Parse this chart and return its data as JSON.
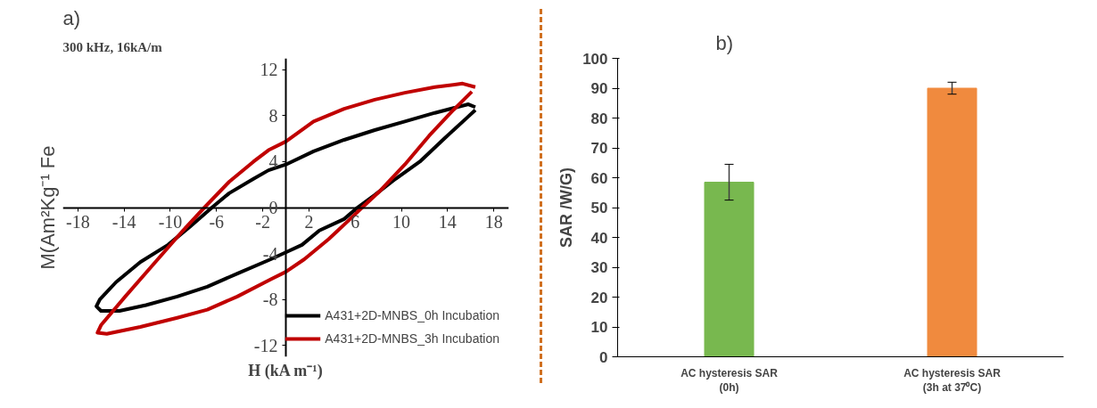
{
  "chart_data": [
    {
      "type": "line",
      "title": "a)",
      "xlabel": "H (kA m⁻¹)",
      "ylabel": "M(Am²Kg⁻¹ Fe",
      "annotations": [
        "300 kHz, 16kA/m"
      ],
      "xlim": [
        -19.3,
        19.3
      ],
      "ylim": [
        -13,
        13
      ],
      "xticks": [
        -18,
        -14,
        -10,
        -6,
        -2,
        2,
        6,
        10,
        14,
        18
      ],
      "yticks": [
        -12,
        -8,
        -4,
        0,
        4,
        8,
        12
      ],
      "grid": false,
      "legend": "bottom right",
      "line_style": "solid",
      "marker": "none",
      "series": [
        {
          "name": "A431+2D-MNBS_0h Incubation",
          "color": "#000000",
          "x": [
            16.4,
            15.8,
            12.9,
            10.3,
            7.7,
            5.05,
            2.4,
            0,
            -1.5,
            -2.8,
            -4.9,
            -6.4,
            -8.1,
            -10.2,
            -12.6,
            -14.7,
            -16.1,
            -16.4,
            -16,
            -14.4,
            -12.1,
            -9.4,
            -6.8,
            -4.2,
            -1.3,
            0,
            1.4,
            2.9,
            5.05,
            6.2,
            7.7,
            9.5,
            11.6,
            13.7,
            15.6,
            16.4
          ],
          "values": [
            8.75,
            9,
            8.25,
            7.5,
            6.75,
            5.9,
            4.9,
            3.75,
            3.25,
            2.5,
            1.25,
            0,
            -1.5,
            -3.25,
            -4.75,
            -6.5,
            -8,
            -8.6,
            -9,
            -9,
            -8.5,
            -7.75,
            -6.9,
            -5.75,
            -4.5,
            -3.9,
            -3.25,
            -2,
            -1,
            0,
            1.1,
            2.5,
            4,
            6,
            7.75,
            8.5
          ]
        },
        {
          "name": "A431+2D-MNBS_3h Incubation",
          "color": "#c00000",
          "x": [
            16.4,
            15.3,
            12.9,
            10.3,
            7.7,
            5.05,
            2.4,
            0,
            -1.5,
            -2.8,
            -4.9,
            -7.05,
            -8.9,
            -11.3,
            -13.9,
            -16,
            -16.3,
            -15.5,
            -12.6,
            -9.4,
            -6.8,
            -4.2,
            -1.3,
            0,
            1.6,
            3.7,
            5.3,
            6.6,
            8.2,
            10.3,
            12.4,
            14.5,
            16.1
          ],
          "values": [
            10.5,
            10.8,
            10.5,
            10,
            9.4,
            8.6,
            7.5,
            5.75,
            5,
            4,
            2.25,
            0,
            -2,
            -4.75,
            -7.75,
            -10.25,
            -10.9,
            -11,
            -10.4,
            -9.6,
            -8.9,
            -7.75,
            -6.25,
            -5.6,
            -4.5,
            -2.75,
            -1.25,
            0,
            1.5,
            3.75,
            6.25,
            8.5,
            10.1
          ]
        }
      ]
    },
    {
      "type": "bar",
      "title": "b)",
      "ylabel": "SAR /W/G)",
      "categories": [
        "AC hysteresis SAR\n(0h)",
        "AC hysteresis SAR\n(3h at 37⁰C)"
      ],
      "values": [
        58.5,
        90
      ],
      "colors": [
        "#78b84f",
        "#f08a3e"
      ],
      "errors": [
        [
          52.5,
          64.5
        ],
        [
          88,
          92
        ]
      ],
      "ylim": [
        0,
        100
      ],
      "yticks": [
        0,
        10,
        20,
        30,
        40,
        50,
        60,
        70,
        80,
        90,
        100
      ],
      "grid": false
    }
  ]
}
